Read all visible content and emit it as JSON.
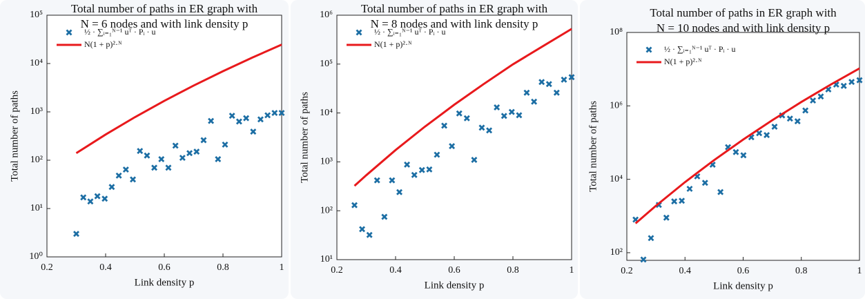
{
  "chart_data": [
    {
      "type": "scatter",
      "title": [
        "Total number of paths in ER graph with",
        "N = 6 nodes and with link density p"
      ],
      "xlabel": "Link density p",
      "ylabel": "Total number of paths",
      "log_y": true,
      "grid": false,
      "legend": "upper left",
      "xlim": [
        0.2,
        1
      ],
      "xticks": [
        0.2,
        0.4,
        0.6,
        0.8,
        1
      ],
      "ylim": [
        1,
        100000
      ],
      "yticks": [
        {
          "value": 1,
          "label": "10⁰"
        },
        {
          "value": 10,
          "label": "10¹"
        },
        {
          "value": 100,
          "label": "10²"
        },
        {
          "value": 1000,
          "label": "10³"
        },
        {
          "value": 10000,
          "label": "10⁴"
        },
        {
          "value": 100000,
          "label": "10⁵"
        }
      ],
      "series": [
        {
          "name": "½ · ∑ᵢ₌₁ᴺ⁻¹ uᵀ · Pᵢ · u",
          "type": "scatter",
          "color": "#1c6ea4",
          "x": [
            0.3,
            0.324,
            0.348,
            0.372,
            0.397,
            0.421,
            0.445,
            0.469,
            0.493,
            0.517,
            0.541,
            0.566,
            0.59,
            0.614,
            0.638,
            0.662,
            0.686,
            0.71,
            0.734,
            0.759,
            0.783,
            0.807,
            0.831,
            0.855,
            0.879,
            0.903,
            0.928,
            0.952,
            0.976,
            1
          ],
          "values": [
            3,
            17,
            14,
            18,
            16,
            28,
            48,
            64,
            40,
            155,
            125,
            70,
            105,
            70,
            200,
            112,
            140,
            150,
            260,
            650,
            105,
            210,
            830,
            630,
            740,
            390,
            700,
            850,
            950,
            950
          ]
        },
        {
          "name": "N(1 + p)²·ᴺ",
          "type": "line",
          "color": "#e8191c",
          "x": [
            0.3,
            0.4,
            0.5,
            0.6,
            0.7,
            0.8,
            0.9,
            1
          ],
          "values": [
            140,
            340,
            778,
            1689,
            3499,
            6941,
            13283,
            24576
          ]
        }
      ]
    },
    {
      "type": "scatter",
      "title": [
        "Total number of paths in ER graph with",
        "N = 8 nodes and with link density p"
      ],
      "xlabel": "Link density p",
      "ylabel": "Total number of paths",
      "log_y": true,
      "grid": false,
      "legend": "upper left",
      "xlim": [
        0.2,
        1
      ],
      "xticks": [
        0.2,
        0.4,
        0.6,
        0.8,
        1
      ],
      "ylim": [
        10,
        1000000
      ],
      "yticks": [
        {
          "value": 10,
          "label": "10¹"
        },
        {
          "value": 100,
          "label": "10²"
        },
        {
          "value": 1000,
          "label": "10³"
        },
        {
          "value": 10000,
          "label": "10⁴"
        },
        {
          "value": 100000,
          "label": "10⁵"
        },
        {
          "value": 1000000,
          "label": "10⁶"
        }
      ],
      "series": [
        {
          "name": "½ · ∑ᵢ₌₁ᴺ⁻¹ uᵀ · Pᵢ · u",
          "type": "scatter",
          "color": "#1c6ea4",
          "x": [
            0.26,
            0.286,
            0.311,
            0.337,
            0.362,
            0.388,
            0.413,
            0.439,
            0.464,
            0.49,
            0.515,
            0.541,
            0.566,
            0.592,
            0.617,
            0.643,
            0.668,
            0.694,
            0.719,
            0.745,
            0.77,
            0.796,
            0.821,
            0.847,
            0.872,
            0.898,
            0.923,
            0.949,
            0.974,
            1
          ],
          "values": [
            130,
            42,
            32,
            420,
            75,
            420,
            240,
            880,
            540,
            680,
            700,
            1400,
            5500,
            2100,
            9800,
            7800,
            1100,
            5000,
            4400,
            13000,
            8700,
            10500,
            9000,
            26000,
            17000,
            43000,
            39000,
            26000,
            48000,
            54000
          ]
        },
        {
          "name": "N(1 + p)²·ᴺ",
          "type": "line",
          "color": "#e8191c",
          "x": [
            0.26,
            0.3,
            0.4,
            0.5,
            0.6,
            0.7,
            0.8,
            0.9,
            1
          ],
          "values": [
            323,
            532,
            1743,
            5255,
            14757,
            38930,
            98786,
            228142,
            524288
          ]
        }
      ]
    },
    {
      "type": "scatter",
      "title": [
        "Total number of paths in ER graph with",
        "N = 10 nodes and with link density p"
      ],
      "xlabel": "Link density p",
      "ylabel": "Total number of paths",
      "log_y": true,
      "grid": false,
      "legend": "upper left",
      "xlim": [
        0.2,
        1
      ],
      "xticks": [
        0.2,
        0.4,
        0.6,
        0.8,
        1
      ],
      "ylim": [
        62,
        100000000
      ],
      "yticks": [
        {
          "value": 100,
          "label": "10²"
        },
        {
          "value": 10000,
          "label": "10⁴"
        },
        {
          "value": 1000000,
          "label": "10⁶"
        },
        {
          "value": 100000000,
          "label": "10⁸"
        }
      ],
      "series": [
        {
          "name": "½ · ∑ᵢ₌₁ᴺ⁻¹ uᵀ · Pᵢ · u",
          "type": "scatter",
          "color": "#1c6ea4",
          "x": [
            0.23,
            0.257,
            0.283,
            0.31,
            0.336,
            0.363,
            0.389,
            0.416,
            0.442,
            0.469,
            0.495,
            0.522,
            0.548,
            0.575,
            0.601,
            0.628,
            0.655,
            0.681,
            0.708,
            0.734,
            0.761,
            0.787,
            0.814,
            0.84,
            0.867,
            0.893,
            0.92,
            0.946,
            0.973,
            1
          ],
          "values": [
            800,
            65,
            250,
            2000,
            900,
            2500,
            2600,
            5500,
            12000,
            8000,
            25000,
            4500,
            75000,
            55000,
            45000,
            140000,
            180000,
            160000,
            270000,
            550000,
            450000,
            380000,
            750000,
            1400000,
            1800000,
            2800000,
            3800000,
            3500000,
            4500000,
            5000000
          ]
        },
        {
          "name": "N(1 + p)²·ᴺ",
          "type": "line",
          "color": "#e8191c",
          "x": [
            0.23,
            0.3,
            0.4,
            0.5,
            0.6,
            0.7,
            0.8,
            0.9,
            1
          ],
          "values": [
            628,
            1900,
            8367,
            33253,
            120893,
            406423,
            1274820,
            3759000,
            10485760
          ]
        }
      ]
    }
  ]
}
